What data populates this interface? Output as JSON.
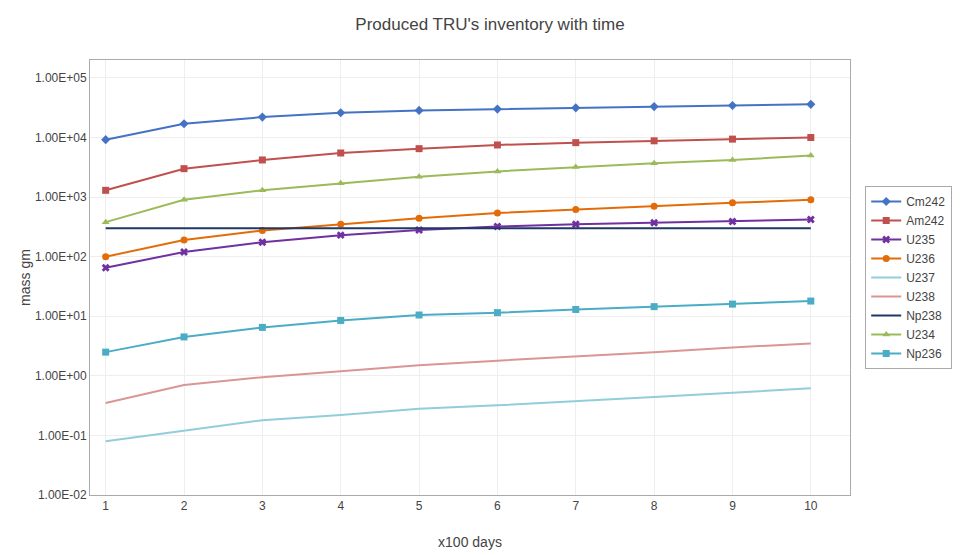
{
  "chart_data": {
    "type": "line",
    "title": "Produced TRU's inventory with time",
    "x_label": "x100 days",
    "y_label": "mass gm",
    "x": [
      1,
      2,
      3,
      4,
      5,
      6,
      7,
      8,
      9,
      10
    ],
    "series": [
      {
        "name": "Cm242",
        "color": "#4472C4",
        "marker": "diamond",
        "values": [
          9200,
          17000,
          22000,
          26000,
          28500,
          30000,
          31500,
          33000,
          34500,
          36000
        ]
      },
      {
        "name": "Am242",
        "color": "#C0504D",
        "marker": "square",
        "values": [
          1300,
          3000,
          4200,
          5500,
          6500,
          7500,
          8200,
          8800,
          9400,
          10000
        ]
      },
      {
        "name": "U235",
        "color": "#7030A0",
        "marker": "x",
        "values": [
          65,
          120,
          175,
          230,
          280,
          320,
          350,
          370,
          390,
          420
        ]
      },
      {
        "name": "U236",
        "color": "#E36C09",
        "marker": "circle",
        "values": [
          100,
          190,
          275,
          350,
          440,
          540,
          620,
          700,
          800,
          900
        ]
      },
      {
        "name": "U237",
        "color": "#92CDDC",
        "marker": "none",
        "values": [
          0.08,
          0.12,
          0.18,
          0.22,
          0.28,
          0.32,
          0.38,
          0.44,
          0.52,
          0.62
        ]
      },
      {
        "name": "U238",
        "color": "#D99694",
        "marker": "none",
        "values": [
          0.35,
          0.7,
          0.95,
          1.2,
          1.5,
          1.8,
          2.1,
          2.5,
          3.0,
          3.5
        ]
      },
      {
        "name": "Np238",
        "color": "#1F3864",
        "marker": "none",
        "values": [
          300,
          300,
          300,
          300,
          300,
          300,
          300,
          300,
          300,
          300
        ]
      },
      {
        "name": "U234",
        "color": "#9BBB59",
        "marker": "triangle-up",
        "values": [
          380,
          900,
          1300,
          1700,
          2200,
          2700,
          3200,
          3700,
          4200,
          5000
        ]
      },
      {
        "name": "Np236",
        "color": "#4BACC6",
        "marker": "square",
        "values": [
          2.5,
          4.5,
          6.5,
          8.5,
          10.5,
          11.5,
          13.0,
          14.5,
          16.0,
          18.0
        ]
      }
    ],
    "xlim": [
      0.8,
      10.5
    ],
    "xticks": [
      1,
      2,
      3,
      4,
      5,
      6,
      7,
      8,
      9,
      10
    ],
    "ylim": [
      0.01,
      200000
    ],
    "yticks": [
      {
        "value": 0.01,
        "label": "1.00E-02"
      },
      {
        "value": 0.1,
        "label": "1.00E-01"
      },
      {
        "value": 1,
        "label": "1.00E+00"
      },
      {
        "value": 10,
        "label": "1.00E+01"
      },
      {
        "value": 100,
        "label": "1.00E+02"
      },
      {
        "value": 1000,
        "label": "1.00E+03"
      },
      {
        "value": 10000,
        "label": "1.00E+04"
      },
      {
        "value": 100000,
        "label": "1.00E+05"
      }
    ],
    "log": "y",
    "grid": true,
    "legend": "right"
  }
}
